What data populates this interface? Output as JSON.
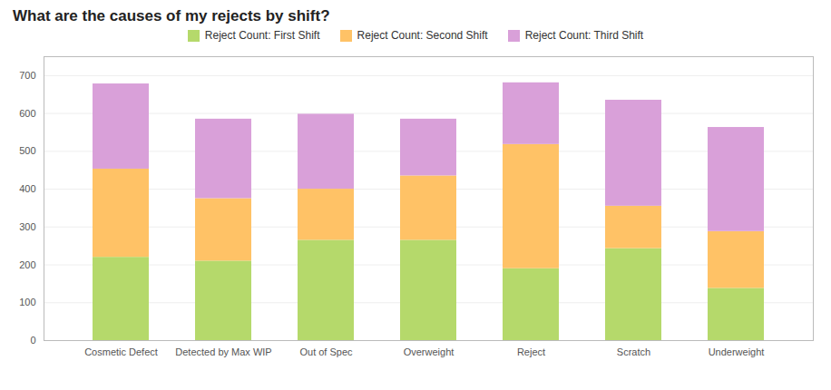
{
  "chart_data": {
    "type": "bar",
    "title": "What are the causes of my rejects by shift?",
    "categories": [
      "Cosmetic Defect",
      "Detected by Max WIP",
      "Out of Spec",
      "Overweight",
      "Reject",
      "Scratch",
      "Underweight"
    ],
    "series": [
      {
        "name": "Reject Count: First Shift",
        "color": "#b5d96b",
        "values": [
          220,
          210,
          265,
          265,
          190,
          243,
          138
        ]
      },
      {
        "name": "Reject Count: Second Shift",
        "color": "#ffc266",
        "values": [
          233,
          165,
          135,
          170,
          328,
          112,
          150
        ]
      },
      {
        "name": "Reject Count: Third Shift",
        "color": "#d9a0d9",
        "values": [
          225,
          210,
          198,
          150,
          163,
          280,
          275
        ]
      }
    ],
    "ylim": [
      0,
      750
    ],
    "yticks": [
      0,
      100,
      200,
      300,
      400,
      500,
      600,
      700
    ],
    "stacked": true,
    "grid": true,
    "legend": "top"
  }
}
